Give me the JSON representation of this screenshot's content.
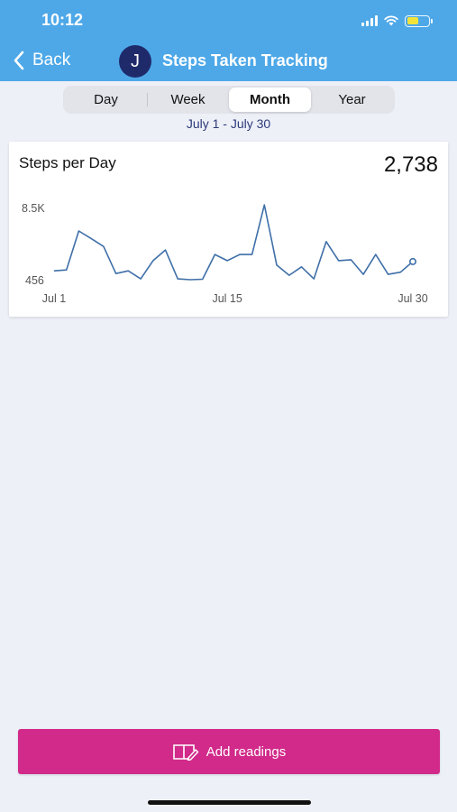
{
  "status": {
    "time": "10:12"
  },
  "nav": {
    "back_label": "Back",
    "avatar_initial": "J",
    "title": "Steps Taken Tracking"
  },
  "segments": {
    "day": "Day",
    "week": "Week",
    "month": "Month",
    "year": "Year",
    "selected": "Month"
  },
  "date_range": "July 1 - July 30",
  "card": {
    "title": "Steps per Day",
    "value": "2,738"
  },
  "chart_data": {
    "type": "line",
    "title": "Steps per Day",
    "y_tick_labels": [
      "8.5K",
      "456"
    ],
    "ylim": [
      456,
      8500
    ],
    "x_tick_labels": [
      "Jul 1",
      "Jul 15",
      "Jul 30"
    ],
    "x": [
      1,
      2,
      3,
      4,
      5,
      6,
      7,
      8,
      9,
      10,
      11,
      12,
      13,
      14,
      15,
      16,
      17,
      18,
      19,
      20,
      21,
      22,
      23,
      24,
      25,
      26,
      27,
      28,
      29,
      30
    ],
    "values": [
      1350,
      1450,
      5850,
      5000,
      4100,
      1050,
      1350,
      450,
      2500,
      3700,
      450,
      350,
      400,
      3200,
      2500,
      3200,
      3200,
      8800,
      2000,
      850,
      1800,
      450,
      4650,
      2500,
      2600,
      950,
      3200,
      950,
      1200,
      2400
    ],
    "grid": false,
    "color": "#3f6fa8"
  },
  "button": {
    "label": "Add readings"
  },
  "colors": {
    "header": "#4ea8e8",
    "button": "#d12a8a",
    "line": "#3f6fa8",
    "avatar": "#1f2a6b"
  }
}
